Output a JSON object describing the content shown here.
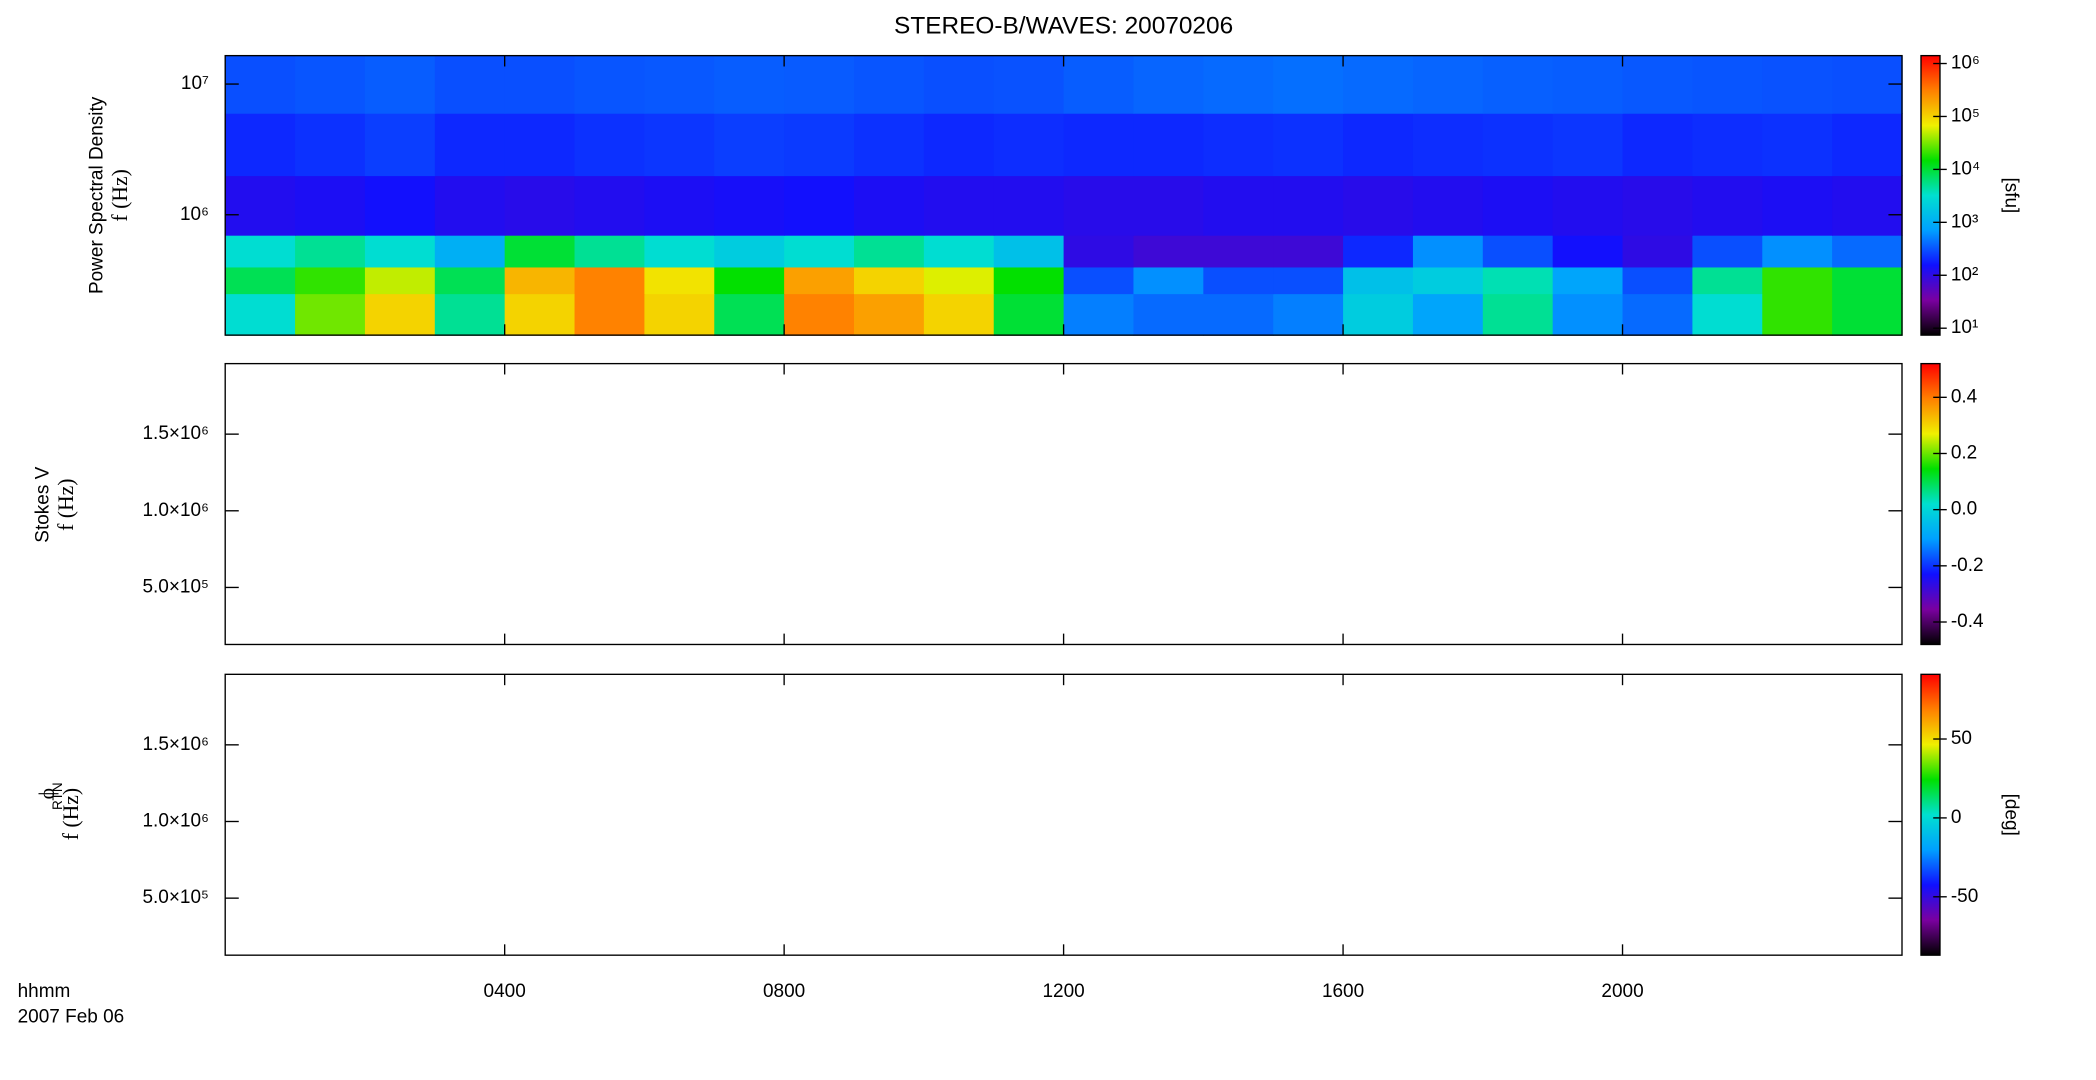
{
  "chart_data": [
    {
      "type": "heatmap",
      "title": "STEREO-B/WAVES: 20070206",
      "ylabel": "Power Spectral Density",
      "ylabel_unit": "f (Hz)",
      "xlim": [
        0,
        24
      ],
      "ylim": [
        120000,
        16500000
      ],
      "ylog": true,
      "yticks": [
        {
          "value": 1000000,
          "label": "10⁶"
        },
        {
          "value": 10000000,
          "label": "10⁷"
        }
      ],
      "x_bins": [
        0,
        1,
        2,
        3,
        4,
        5,
        6,
        7,
        8,
        9,
        10,
        11,
        12,
        13,
        14,
        15,
        16,
        17,
        18,
        19,
        20,
        21,
        22,
        23,
        24
      ],
      "y_bins": [
        120000,
        250000,
        400000,
        700000,
        2000000,
        6000000,
        16500000
      ],
      "z": [
        [
          3000,
          30000,
          100000,
          5000,
          100000,
          300000,
          100000,
          8000,
          300000,
          200000,
          100000,
          10000,
          500,
          400,
          400,
          500,
          2000,
          800,
          5000,
          600,
          400,
          3000,
          20000,
          10000
        ],
        [
          8000,
          20000,
          50000,
          8000,
          150000,
          300000,
          80000,
          15000,
          200000,
          100000,
          60000,
          15000,
          300,
          600,
          300,
          300,
          1500,
          2000,
          4000,
          800,
          300,
          5000,
          20000,
          10000
        ],
        [
          3000,
          5000,
          3000,
          1000,
          10000,
          5000,
          3000,
          2000,
          3000,
          5000,
          3000,
          1500,
          100,
          80,
          80,
          80,
          200,
          600,
          300,
          150,
          100,
          300,
          600,
          400
        ],
        [
          120,
          130,
          150,
          120,
          110,
          120,
          130,
          140,
          150,
          130,
          120,
          120,
          110,
          110,
          120,
          120,
          110,
          120,
          130,
          120,
          110,
          120,
          130,
          120
        ],
        [
          200,
          220,
          250,
          200,
          200,
          220,
          230,
          250,
          240,
          220,
          200,
          210,
          200,
          200,
          210,
          220,
          200,
          210,
          220,
          230,
          200,
          210,
          220,
          200
        ],
        [
          300,
          320,
          350,
          300,
          300,
          320,
          330,
          350,
          340,
          320,
          300,
          310,
          350,
          380,
          400,
          420,
          400,
          380,
          360,
          350,
          330,
          320,
          310,
          300
        ]
      ],
      "colorscale": [
        "#000000",
        "#7a00a0",
        "#1010ff",
        "#00a0ff",
        "#00e0d0",
        "#00e000",
        "#f0f000",
        "#ff8000",
        "#ff0000"
      ],
      "colorbar": {
        "label": "[sfu]",
        "lim": [
          7.4,
          1410000
        ],
        "log": true,
        "ticks": [
          {
            "value": 10,
            "label": "10¹"
          },
          {
            "value": 100,
            "label": "10²"
          },
          {
            "value": 1000,
            "label": "10³"
          },
          {
            "value": 10000,
            "label": "10⁴"
          },
          {
            "value": 100000,
            "label": "10⁵"
          },
          {
            "value": 1000000,
            "label": "10⁶"
          }
        ]
      }
    },
    {
      "type": "heatmap",
      "ylabel": "Stokes V",
      "ylabel_unit": "f (Hz)",
      "xlim": [
        0,
        24
      ],
      "ylim": [
        128000,
        1960000
      ],
      "ylog": false,
      "yticks": [
        {
          "value": 500000,
          "label": "5.0×10⁵"
        },
        {
          "value": 1000000,
          "label": "1.0×10⁶"
        },
        {
          "value": 1500000,
          "label": "1.5×10⁶"
        }
      ],
      "colorscale": [
        "#000000",
        "#7a00a0",
        "#1010ff",
        "#00a0ff",
        "#00e0d0",
        "#00e000",
        "#f0f000",
        "#ff8000",
        "#ff0000"
      ],
      "colorbar": {
        "lim": [
          -0.48,
          0.52
        ],
        "log": false,
        "ticks": [
          -0.4,
          -0.2,
          {
            "value": 0,
            "label": "0.0"
          },
          0.2,
          0.4
        ]
      }
    },
    {
      "type": "heatmap",
      "ylabel_symbol": "ϕ",
      "ylabel_subscript": "RTN",
      "ylabel_unit": "f (Hz)",
      "xlim": [
        0,
        24
      ],
      "ylim": [
        128000,
        1960000
      ],
      "ylog": false,
      "yticks": [
        {
          "value": 500000,
          "label": "5.0×10⁵"
        },
        {
          "value": 1000000,
          "label": "1.0×10⁶"
        },
        {
          "value": 1500000,
          "label": "1.5×10⁶"
        }
      ],
      "xticks": [
        {
          "value": 4,
          "label": "0400"
        },
        {
          "value": 8,
          "label": "0800"
        },
        {
          "value": 12,
          "label": "1200"
        },
        {
          "value": 16,
          "label": "1600"
        },
        {
          "value": 20,
          "label": "2000"
        }
      ],
      "xlabel": "hhmm",
      "xlabel_date": "2007 Feb 06",
      "colorscale": [
        "#000000",
        "#7a00a0",
        "#1010ff",
        "#00a0ff",
        "#00e0d0",
        "#00e000",
        "#f0f000",
        "#ff8000",
        "#ff0000"
      ],
      "colorbar": {
        "label": "[deg]",
        "lim": [
          -87,
          91
        ],
        "log": false,
        "ticks": [
          -50,
          0,
          50
        ]
      }
    }
  ]
}
